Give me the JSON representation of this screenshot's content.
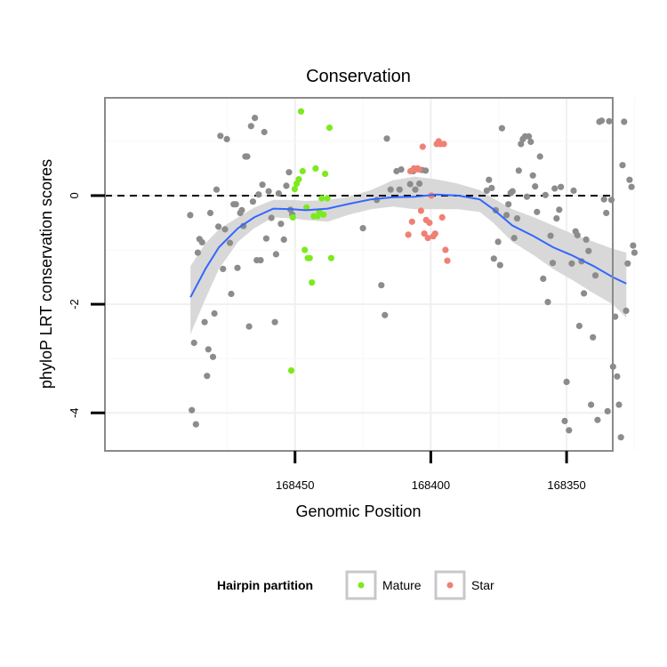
{
  "chart_data": {
    "type": "scatter",
    "title": "Conservation",
    "xlabel": "Genomic Position",
    "ylabel": "phyloP LRT conservation scores",
    "x_reversed": true,
    "xlim": [
      168333,
      168520
    ],
    "ylim": [
      -4.7,
      1.8
    ],
    "x_ticks": [
      168450,
      168400,
      168350
    ],
    "x_tick_labels": [
      "168450",
      "168400",
      "168350"
    ],
    "y_ticks": [
      -4,
      -2,
      0
    ],
    "y_tick_labels": [
      "-4",
      "-2",
      "0"
    ],
    "reference_line": {
      "y": 0,
      "style": "dashed"
    },
    "grid": true,
    "legend": {
      "title": "Hairpin partition",
      "placement": "bottom",
      "entries": [
        {
          "label": "Mature",
          "color": "#7cea1c"
        },
        {
          "label": "Star",
          "color": "#f08074"
        }
      ]
    },
    "colors": {
      "other": "#8c8c8c",
      "Mature": "#7cea1c",
      "Star": "#f08074",
      "smooth": "#3366ff",
      "band": "#d4d4d4"
    },
    "series": [
      {
        "group": "other",
        "points": [
          [
            168488.6,
            -0.36
          ],
          [
            168488.0,
            -3.95
          ],
          [
            168487.2,
            -2.71
          ],
          [
            168486.5,
            -4.21
          ],
          [
            168485.8,
            -1.05
          ],
          [
            168485.2,
            -0.8
          ],
          [
            168484.2,
            -0.86
          ],
          [
            168483.3,
            -2.33
          ],
          [
            168482.4,
            -3.32
          ],
          [
            168481.9,
            -2.83
          ],
          [
            168481.2,
            -0.32
          ],
          [
            168480.2,
            -2.97
          ],
          [
            168479.7,
            -2.17
          ],
          [
            168478.9,
            0.11
          ],
          [
            168478.2,
            -0.57
          ],
          [
            168477.5,
            1.1
          ],
          [
            168476.5,
            -1.35
          ],
          [
            168475.8,
            -0.62
          ],
          [
            168475.1,
            1.04
          ],
          [
            168474.0,
            -0.87
          ],
          [
            168473.5,
            -1.81
          ],
          [
            168472.6,
            -0.16
          ],
          [
            168471.8,
            -0.16
          ],
          [
            168471.2,
            -1.33
          ],
          [
            168470.2,
            -0.32
          ],
          [
            168469.6,
            -0.27
          ],
          [
            168469.0,
            -0.56
          ],
          [
            168468.3,
            0.72
          ],
          [
            168467.6,
            0.72
          ],
          [
            168466.9,
            -2.41
          ],
          [
            168466.2,
            1.28
          ],
          [
            168465.5,
            -0.11
          ],
          [
            168464.8,
            1.43
          ],
          [
            168464.1,
            -1.19
          ],
          [
            168463.4,
            0.02
          ],
          [
            168462.7,
            -1.19
          ],
          [
            168462.0,
            0.2
          ],
          [
            168461.3,
            1.17
          ],
          [
            168460.6,
            -0.79
          ],
          [
            168459.7,
            0.08
          ],
          [
            168458.7,
            -0.41
          ],
          [
            168457.4,
            -2.33
          ],
          [
            168457.0,
            -1.08
          ],
          [
            168456.0,
            0.04
          ],
          [
            168455.2,
            -0.52
          ],
          [
            168454.1,
            -0.81
          ],
          [
            168453.2,
            0.18
          ],
          [
            168452.2,
            0.43
          ],
          [
            168451.7,
            -0.26
          ],
          [
            168451.0,
            -0.35
          ],
          [
            168425.0,
            -0.6
          ],
          [
            168419.9,
            -0.08
          ],
          [
            168418.2,
            -1.65
          ],
          [
            168416.9,
            -2.2
          ],
          [
            168416.2,
            1.05
          ],
          [
            168414.8,
            0.11
          ],
          [
            168412.6,
            0.45
          ],
          [
            168411.5,
            0.11
          ],
          [
            168410.9,
            0.48
          ],
          [
            168407.6,
            0.21
          ],
          [
            168406.5,
            0.45
          ],
          [
            168405.7,
            0.11
          ],
          [
            168404.2,
            0.22
          ],
          [
            168403.2,
            0.47
          ],
          [
            168401.9,
            0.46
          ],
          [
            168379.4,
            0.09
          ],
          [
            168378.6,
            0.29
          ],
          [
            168377.6,
            0.14
          ],
          [
            168376.8,
            -1.16
          ],
          [
            168376.1,
            -0.27
          ],
          [
            168375.2,
            -0.85
          ],
          [
            168374.5,
            -1.28
          ],
          [
            168373.8,
            1.24
          ],
          [
            168372.1,
            -0.36
          ],
          [
            168371.4,
            -0.16
          ],
          [
            168370.6,
            0.05
          ],
          [
            168369.9,
            0.08
          ],
          [
            168369.3,
            -0.78
          ],
          [
            168368.2,
            -0.42
          ],
          [
            168367.6,
            0.46
          ],
          [
            168366.8,
            0.95
          ],
          [
            168366.1,
            1.04
          ],
          [
            168365.3,
            1.09
          ],
          [
            168364.6,
            -0.02
          ],
          [
            168363.9,
            1.09
          ],
          [
            168363.2,
            0.99
          ],
          [
            168362.4,
            0.37
          ],
          [
            168361.6,
            0.17
          ],
          [
            168360.9,
            -0.3
          ],
          [
            168359.8,
            0.72
          ],
          [
            168358.6,
            -1.53
          ],
          [
            168357.8,
            0.01
          ],
          [
            168356.9,
            -1.96
          ],
          [
            168355.9,
            -0.74
          ],
          [
            168355.1,
            -1.24
          ],
          [
            168354.4,
            0.13
          ],
          [
            168353.7,
            -0.42
          ],
          [
            168352.7,
            -0.26
          ],
          [
            168352.1,
            0.16
          ],
          [
            168350.7,
            -4.15
          ],
          [
            168350.0,
            -3.43
          ],
          [
            168349.1,
            -4.32
          ],
          [
            168348.1,
            -1.25
          ],
          [
            168347.4,
            0.09
          ],
          [
            168346.7,
            -0.66
          ],
          [
            168346.0,
            -0.73
          ],
          [
            168345.3,
            -2.4
          ],
          [
            168344.5,
            -1.21
          ],
          [
            168343.6,
            -1.8
          ],
          [
            168342.8,
            -0.81
          ],
          [
            168341.9,
            -1.02
          ],
          [
            168341.0,
            -3.85
          ],
          [
            168340.3,
            -2.61
          ],
          [
            168339.4,
            -1.47
          ],
          [
            168338.6,
            -4.13
          ],
          [
            168337.9,
            1.36
          ],
          [
            168337.1,
            1.38
          ],
          [
            168336.2,
            -0.07
          ],
          [
            168335.4,
            -0.32
          ],
          [
            168334.9,
            -3.97
          ],
          [
            168334.3,
            1.37
          ],
          [
            168333.5,
            -0.08
          ],
          [
            168332.9,
            -3.15
          ],
          [
            168332.1,
            -2.23
          ],
          [
            168331.4,
            -3.33
          ],
          [
            168330.7,
            -3.85
          ],
          [
            168330.0,
            -4.45
          ],
          [
            168329.4,
            0.56
          ],
          [
            168328.8,
            1.36
          ],
          [
            168328.1,
            -2.12
          ],
          [
            168327.5,
            -1.25
          ],
          [
            168326.8,
            0.29
          ],
          [
            168326.1,
            0.16
          ],
          [
            168325.5,
            -0.92
          ],
          [
            168325.0,
            -1.05
          ]
        ]
      },
      {
        "group": "Mature",
        "points": [
          [
            168451.4,
            -3.22
          ],
          [
            168450.8,
            -0.4
          ],
          [
            168450.1,
            0.12
          ],
          [
            168449.4,
            0.22
          ],
          [
            168448.6,
            0.3
          ],
          [
            168447.8,
            1.55
          ],
          [
            168447.2,
            0.45
          ],
          [
            168446.4,
            -1.0
          ],
          [
            168445.8,
            -0.22
          ],
          [
            168445.3,
            -1.15
          ],
          [
            168444.6,
            -1.15
          ],
          [
            168443.8,
            -1.6
          ],
          [
            168443.1,
            -0.38
          ],
          [
            168442.4,
            0.5
          ],
          [
            168441.7,
            -0.38
          ],
          [
            168441.0,
            -0.3
          ],
          [
            168440.2,
            -0.05
          ],
          [
            168439.5,
            -0.35
          ],
          [
            168438.9,
            0.4
          ],
          [
            168438.1,
            -0.05
          ],
          [
            168437.3,
            1.25
          ],
          [
            168436.7,
            -1.15
          ]
        ]
      },
      {
        "group": "Star",
        "points": [
          [
            168408.3,
            -0.72
          ],
          [
            168407.5,
            0.45
          ],
          [
            168406.9,
            -0.48
          ],
          [
            168406.2,
            0.5
          ],
          [
            168405.6,
            0.48
          ],
          [
            168404.9,
            0.5
          ],
          [
            168404.3,
            0.48
          ],
          [
            168403.6,
            -0.28
          ],
          [
            168403.0,
            0.9
          ],
          [
            168402.4,
            -0.7
          ],
          [
            168401.7,
            -0.45
          ],
          [
            168401.1,
            -0.78
          ],
          [
            168400.5,
            -0.5
          ],
          [
            168399.8,
            0.0
          ],
          [
            168399.1,
            -0.75
          ],
          [
            168398.4,
            -0.7
          ],
          [
            168397.8,
            0.95
          ],
          [
            168397.1,
            1.0
          ],
          [
            168396.5,
            0.95
          ],
          [
            168395.8,
            -0.4
          ],
          [
            168395.2,
            0.95
          ],
          [
            168394.6,
            -1.0
          ],
          [
            168393.9,
            -1.2
          ]
        ]
      }
    ],
    "smooth": [
      [
        168488.5,
        -1.87
      ],
      [
        168483,
        -1.35
      ],
      [
        168478,
        -0.95
      ],
      [
        168471,
        -0.6
      ],
      [
        168465,
        -0.4
      ],
      [
        168458,
        -0.24
      ],
      [
        168451,
        -0.25
      ],
      [
        168446,
        -0.27
      ],
      [
        168438,
        -0.24
      ],
      [
        168430,
        -0.15
      ],
      [
        168422,
        -0.07
      ],
      [
        168414,
        -0.03
      ],
      [
        168406,
        -0.02
      ],
      [
        168398,
        0.02
      ],
      [
        168390,
        0.0
      ],
      [
        168382,
        -0.07
      ],
      [
        168377,
        -0.25
      ],
      [
        168370,
        -0.55
      ],
      [
        168362,
        -0.75
      ],
      [
        168355,
        -0.95
      ],
      [
        168348,
        -1.1
      ],
      [
        168340,
        -1.3
      ],
      [
        168333,
        -1.5
      ],
      [
        168328,
        -1.62
      ]
    ],
    "band_upper": [
      [
        168488.5,
        -1.3
      ],
      [
        168483,
        -0.88
      ],
      [
        168478,
        -0.62
      ],
      [
        168471,
        -0.4
      ],
      [
        168465,
        -0.22
      ],
      [
        168458,
        -0.08
      ],
      [
        168451,
        -0.08
      ],
      [
        168446,
        -0.1
      ],
      [
        168438,
        -0.08
      ],
      [
        168430,
        -0.02
      ],
      [
        168422,
        0.1
      ],
      [
        168414,
        0.28
      ],
      [
        168406,
        0.35
      ],
      [
        168398,
        0.3
      ],
      [
        168390,
        0.22
      ],
      [
        168382,
        0.1
      ],
      [
        168377,
        -0.05
      ],
      [
        168370,
        -0.25
      ],
      [
        168362,
        -0.4
      ],
      [
        168355,
        -0.55
      ],
      [
        168348,
        -0.7
      ],
      [
        168340,
        -0.85
      ],
      [
        168333,
        -0.98
      ],
      [
        168328,
        -1.05
      ]
    ],
    "band_lower": [
      [
        168488.5,
        -2.55
      ],
      [
        168483,
        -1.9
      ],
      [
        168478,
        -1.35
      ],
      [
        168471,
        -0.85
      ],
      [
        168465,
        -0.6
      ],
      [
        168458,
        -0.4
      ],
      [
        168451,
        -0.42
      ],
      [
        168446,
        -0.45
      ],
      [
        168438,
        -0.48
      ],
      [
        168430,
        -0.35
      ],
      [
        168422,
        -0.25
      ],
      [
        168414,
        -0.2
      ],
      [
        168406,
        -0.25
      ],
      [
        168398,
        -0.25
      ],
      [
        168390,
        -0.25
      ],
      [
        168382,
        -0.3
      ],
      [
        168377,
        -0.5
      ],
      [
        168370,
        -0.85
      ],
      [
        168362,
        -1.1
      ],
      [
        168355,
        -1.35
      ],
      [
        168348,
        -1.55
      ],
      [
        168340,
        -1.8
      ],
      [
        168333,
        -2.0
      ],
      [
        168328,
        -2.25
      ]
    ]
  }
}
